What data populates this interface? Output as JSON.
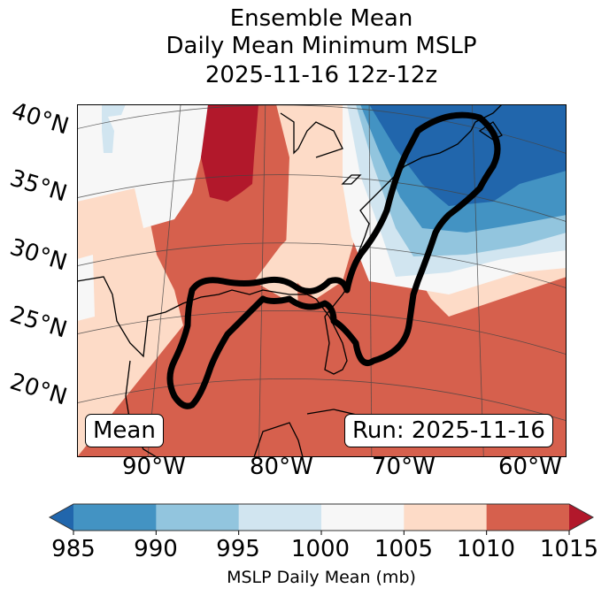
{
  "title": {
    "line1": "Ensemble Mean",
    "line2": "Daily Mean Minimum MSLP",
    "line3": "2025-11-16 12z-12z"
  },
  "map": {
    "lat_labels": [
      "40°N",
      "35°N",
      "30°N",
      "25°N",
      "20°N"
    ],
    "lon_labels": [
      "90°W",
      "80°W",
      "70°W",
      "60°W"
    ],
    "mean_box": "Mean",
    "run_box": "Run: 2025-11-16",
    "contour_color": "#000000",
    "regions": [
      {
        "name": "northeast-low",
        "level": "<985"
      },
      {
        "name": "ohio-valley-high",
        "level": ">1015"
      },
      {
        "name": "gulf-high",
        "level": "1010-1015"
      },
      {
        "name": "atlantic-subtropical",
        "level": "1010-1015"
      }
    ]
  },
  "colorbar": {
    "label": "MSLP Daily Mean (mb)",
    "ticks": [
      "985",
      "990",
      "995",
      "1000",
      "1005",
      "1010",
      "1015"
    ],
    "bins": [
      {
        "range": "<985",
        "color": "#2166ac"
      },
      {
        "range": "985-990",
        "color": "#4393c3"
      },
      {
        "range": "990-995",
        "color": "#92c5de"
      },
      {
        "range": "995-1000",
        "color": "#d1e5f0"
      },
      {
        "range": "1000-1005",
        "color": "#f7f7f7"
      },
      {
        "range": "1005-1010",
        "color": "#fddbc7"
      },
      {
        "range": "1010-1015",
        "color": "#d6604d"
      },
      {
        "range": ">1015",
        "color": "#b2182b"
      }
    ]
  }
}
